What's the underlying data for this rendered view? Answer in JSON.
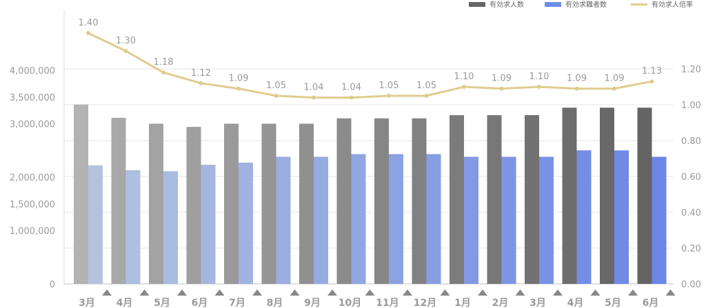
{
  "chart_data": {
    "type": "bar",
    "categories": [
      "3月",
      "4月",
      "5月",
      "6月",
      "7月",
      "8月",
      "9月",
      "10月",
      "11月",
      "12月",
      "1月",
      "2月",
      "3月",
      "4月",
      "5月",
      "6月"
    ],
    "series": [
      {
        "name": "有効求人数",
        "kind": "bar",
        "axis": "left",
        "values": [
          3360000,
          3110000,
          3000000,
          2940000,
          3000000,
          3000000,
          3000000,
          3100000,
          3100000,
          3100000,
          3160000,
          3160000,
          3160000,
          3300000,
          3300000,
          3300000
        ],
        "colors": [
          "#b3b3b3",
          "#a8a8a8",
          "#a3a3a3",
          "#9f9f9f",
          "#9a9a9a",
          "#959595",
          "#909090",
          "#8b8b8b",
          "#868686",
          "#818181",
          "#7c7c7c",
          "#777777",
          "#727272",
          "#6d6d6d",
          "#686868",
          "#646464"
        ]
      },
      {
        "name": "有効求職者数",
        "kind": "bar",
        "axis": "left",
        "values": [
          2220000,
          2130000,
          2110000,
          2230000,
          2270000,
          2380000,
          2380000,
          2430000,
          2430000,
          2430000,
          2380000,
          2380000,
          2380000,
          2500000,
          2500000,
          2380000
        ],
        "colors": [
          "#b4c2e0",
          "#afbfe0",
          "#aabbe0",
          "#a5b7e0",
          "#a0b3e0",
          "#9baee1",
          "#96aae1",
          "#91a6e2",
          "#8ca2e2",
          "#879ee3",
          "#829ae3",
          "#7d96e4",
          "#7892e4",
          "#748ee5",
          "#708ae5",
          "#6c86e6"
        ]
      },
      {
        "name": "有効求人倍率",
        "kind": "line",
        "axis": "right",
        "color": "#e0cc8e",
        "values": [
          1.4,
          1.3,
          1.18,
          1.12,
          1.09,
          1.05,
          1.04,
          1.04,
          1.05,
          1.05,
          1.1,
          1.09,
          1.1,
          1.09,
          1.09,
          1.13
        ],
        "labels": [
          "1.40",
          "1.30",
          "1.18",
          "1.12",
          "1.09",
          "1.05",
          "1.04",
          "1.04",
          "1.05",
          "1.05",
          "1.10",
          "1.09",
          "1.10",
          "1.09",
          "1.09",
          "1.13"
        ]
      }
    ],
    "left_axis": {
      "ticks": [
        0,
        1000000,
        1500000,
        2000000,
        3000000,
        3500000,
        4000000
      ],
      "tick_labels": [
        "0",
        "1,000,000",
        "1,500,000",
        "2,000,000",
        "3,000,000",
        "3,500,000",
        "4,000,000"
      ]
    },
    "right_axis": {
      "ylim": [
        0,
        1.2
      ],
      "ticks": [
        0,
        0.2,
        0.4,
        0.6,
        0.8,
        1.0,
        1.2
      ],
      "tick_labels": [
        "0.00",
        "0.20",
        "0.40",
        "0.60",
        "0.80",
        "1.00",
        "1.20"
      ]
    },
    "grid": true,
    "legend_position": "top-right"
  }
}
